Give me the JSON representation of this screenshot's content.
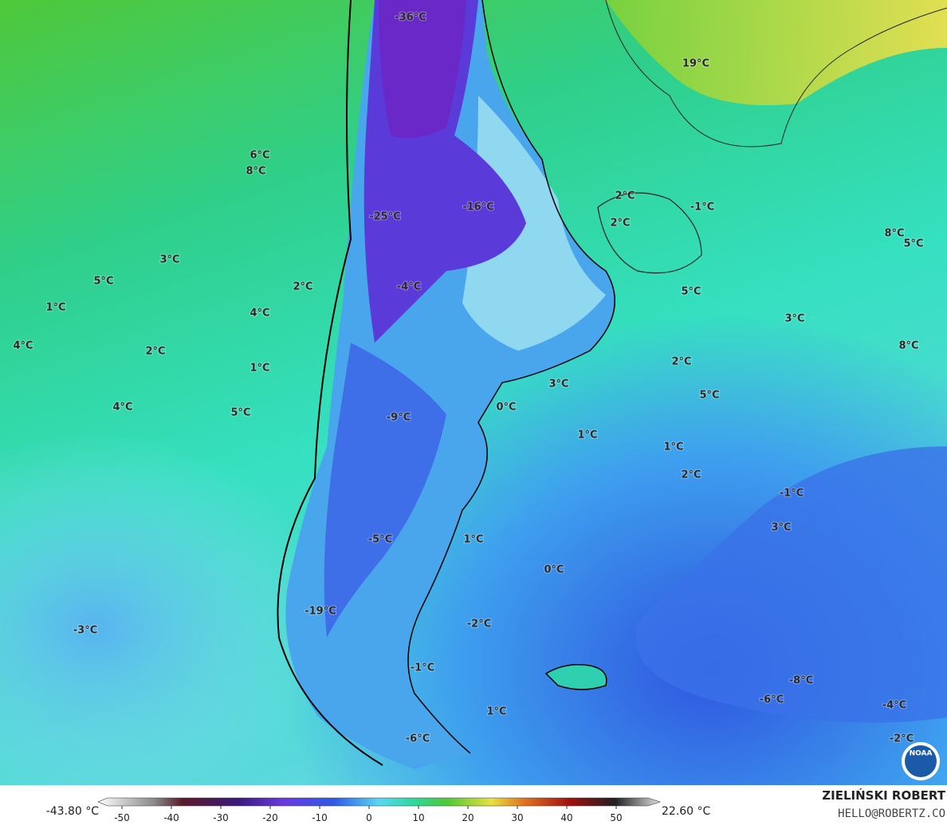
{
  "map": {
    "labels": [
      "-36°C",
      "19°C",
      "6°C",
      "8°C",
      "-25°C",
      "-16°C",
      "2°C",
      "2°C",
      "-1°C",
      "8°C",
      "5°C",
      "3°C",
      "5°C",
      "2°C",
      "1°C",
      "4°C",
      "-4°C",
      "5°C",
      "3°C",
      "4°C",
      "2°C",
      "8°C",
      "1°C",
      "2°C",
      "4°C",
      "5°C",
      "3°C",
      "5°C",
      "0°C",
      "-9°C",
      "1°C",
      "1°C",
      "2°C",
      "-1°C",
      "3°C",
      "-5°C",
      "1°C",
      "0°C",
      "-19°C",
      "-3°C",
      "-2°C",
      "-1°C",
      "-8°C",
      "1°C",
      "-6°C",
      "-4°C",
      "-2°C",
      "-6°C"
    ]
  },
  "colorbar": {
    "min_label": "-43.80 °C",
    "max_label": "22.60 °C",
    "ticks": [
      -50,
      -40,
      -30,
      -20,
      -10,
      0,
      10,
      20,
      30,
      40,
      50
    ]
  },
  "credit": {
    "name": "ZIELIŃSKI ROBERT",
    "email": "HELLO@ROBERTZ.CO"
  },
  "logo": "NOAA"
}
